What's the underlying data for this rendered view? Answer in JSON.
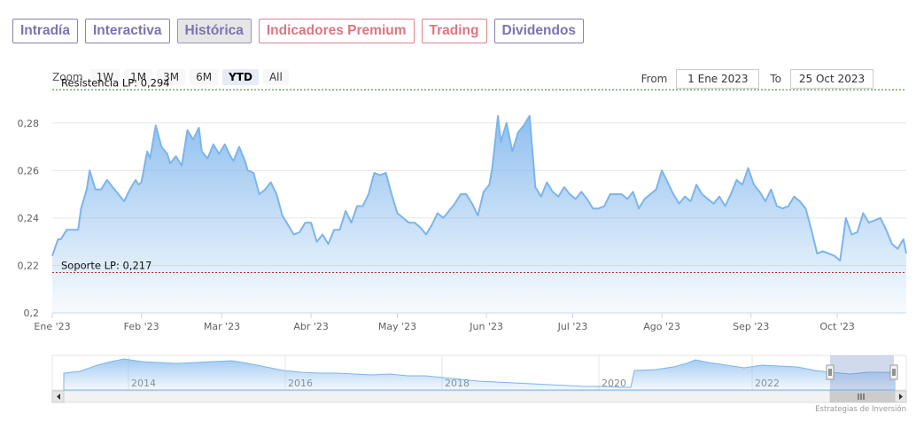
{
  "tabs": [
    {
      "label": "Intradía",
      "active": false,
      "style": "purple"
    },
    {
      "label": "Interactiva",
      "active": false,
      "style": "purple"
    },
    {
      "label": "Histórica",
      "active": true,
      "style": "purple"
    },
    {
      "label": "Indicadores Premium",
      "active": false,
      "style": "red"
    },
    {
      "label": "Trading",
      "active": false,
      "style": "red"
    },
    {
      "label": "Dividendos",
      "active": false,
      "style": "purple"
    }
  ],
  "zoom": {
    "label": "Zoom",
    "buttons": [
      "1W",
      "1M",
      "3M",
      "6M",
      "YTD",
      "All"
    ],
    "selected": "YTD"
  },
  "range": {
    "from_label": "From",
    "from_value": "1 Ene 2023",
    "to_label": "To",
    "to_value": "25 Oct 2023"
  },
  "credit": "Estrategias de Inversión",
  "colors": {
    "line": "#7cb5ec",
    "area_top": "#7cb5ec",
    "resistance": "#2f7a3a",
    "support": "#b03030",
    "tab_purple": "#7d73ad",
    "tab_red": "#db7684"
  },
  "chart_data": {
    "type": "area",
    "ylim": [
      0.2,
      0.29
    ],
    "yticks": [
      {
        "value": 0.2,
        "label": "0,2"
      },
      {
        "value": 0.22,
        "label": "0,22"
      },
      {
        "value": 0.24,
        "label": "0,24"
      },
      {
        "value": 0.26,
        "label": "0,26"
      },
      {
        "value": 0.28,
        "label": "0,28"
      }
    ],
    "xlim": [
      0,
      297
    ],
    "xticks": [
      {
        "day": 0,
        "label": "Ene '23"
      },
      {
        "day": 31,
        "label": "Feb '23"
      },
      {
        "day": 59,
        "label": "Mar '23"
      },
      {
        "day": 90,
        "label": "Abr '23"
      },
      {
        "day": 120,
        "label": "May '23"
      },
      {
        "day": 151,
        "label": "Jun '23"
      },
      {
        "day": 181,
        "label": "Jul '23"
      },
      {
        "day": 212,
        "label": "Ago '23"
      },
      {
        "day": 243,
        "label": "Sep '23"
      },
      {
        "day": 273,
        "label": "Oct '23"
      }
    ],
    "plotlines": [
      {
        "value": 0.294,
        "label": "Resistencia LP: 0,294",
        "kind": "resistance"
      },
      {
        "value": 0.217,
        "label": "Soporte LP: 0,217",
        "kind": "support"
      }
    ],
    "series": [
      {
        "x": [
          0,
          2,
          3,
          5,
          7,
          9,
          10,
          12,
          13,
          15,
          17,
          19,
          21,
          23,
          25,
          27,
          29,
          30,
          31,
          33,
          34,
          36,
          38,
          40,
          41,
          43,
          45,
          47,
          49,
          51,
          52,
          54,
          56,
          58,
          60,
          62,
          63,
          65,
          67,
          68,
          70,
          72,
          74,
          76,
          78,
          80,
          82,
          84,
          86,
          88,
          90,
          92,
          94,
          96,
          98,
          100,
          102,
          104,
          106,
          108,
          110,
          112,
          114,
          116,
          118,
          120,
          122,
          124,
          126,
          128,
          130,
          132,
          134,
          136,
          138,
          140,
          142,
          144,
          146,
          148,
          150,
          152,
          153,
          155,
          156,
          158,
          160,
          162,
          164,
          166,
          168,
          170,
          172,
          174,
          176,
          178,
          180,
          182,
          184,
          186,
          188,
          190,
          192,
          194,
          196,
          198,
          200,
          202,
          204,
          206,
          208,
          210,
          212,
          214,
          216,
          218,
          220,
          222,
          224,
          226,
          228,
          230,
          232,
          234,
          236,
          238,
          240,
          242,
          244,
          246,
          248,
          250,
          252,
          254,
          256,
          258,
          260,
          262,
          264,
          266,
          268,
          270,
          272,
          274,
          276,
          278,
          280,
          282,
          284,
          286,
          288,
          290,
          292,
          294,
          296,
          297
        ],
        "y": [
          0.224,
          0.231,
          0.231,
          0.235,
          0.235,
          0.235,
          0.244,
          0.252,
          0.26,
          0.252,
          0.252,
          0.256,
          0.253,
          0.25,
          0.247,
          0.252,
          0.256,
          0.254,
          0.255,
          0.268,
          0.265,
          0.279,
          0.27,
          0.267,
          0.263,
          0.266,
          0.262,
          0.277,
          0.273,
          0.278,
          0.268,
          0.265,
          0.271,
          0.267,
          0.271,
          0.266,
          0.264,
          0.27,
          0.264,
          0.26,
          0.259,
          0.25,
          0.252,
          0.255,
          0.25,
          0.241,
          0.237,
          0.233,
          0.234,
          0.238,
          0.238,
          0.23,
          0.233,
          0.229,
          0.235,
          0.235,
          0.243,
          0.238,
          0.245,
          0.245,
          0.25,
          0.259,
          0.258,
          0.259,
          0.25,
          0.242,
          0.24,
          0.238,
          0.238,
          0.236,
          0.233,
          0.237,
          0.242,
          0.24,
          0.243,
          0.246,
          0.25,
          0.25,
          0.246,
          0.241,
          0.251,
          0.254,
          0.261,
          0.283,
          0.272,
          0.28,
          0.268,
          0.276,
          0.279,
          0.283,
          0.253,
          0.249,
          0.255,
          0.251,
          0.249,
          0.253,
          0.25,
          0.248,
          0.251,
          0.248,
          0.244,
          0.244,
          0.245,
          0.25,
          0.25,
          0.25,
          0.248,
          0.251,
          0.244,
          0.248,
          0.25,
          0.252,
          0.26,
          0.255,
          0.25,
          0.246,
          0.249,
          0.247,
          0.254,
          0.25,
          0.248,
          0.246,
          0.249,
          0.245,
          0.25,
          0.256,
          0.254,
          0.261,
          0.254,
          0.251,
          0.247,
          0.252,
          0.245,
          0.244,
          0.245,
          0.249,
          0.247,
          0.244,
          0.235,
          0.225,
          0.226,
          0.225,
          0.224,
          0.222,
          0.24,
          0.233,
          0.234,
          0.242,
          0.238,
          0.239,
          0.24,
          0.235,
          0.229,
          0.227,
          0.231,
          0.225
        ]
      }
    ]
  },
  "navigator": {
    "year_labels": [
      "2014",
      "2016",
      "2018",
      "2020",
      "2022"
    ]
  }
}
